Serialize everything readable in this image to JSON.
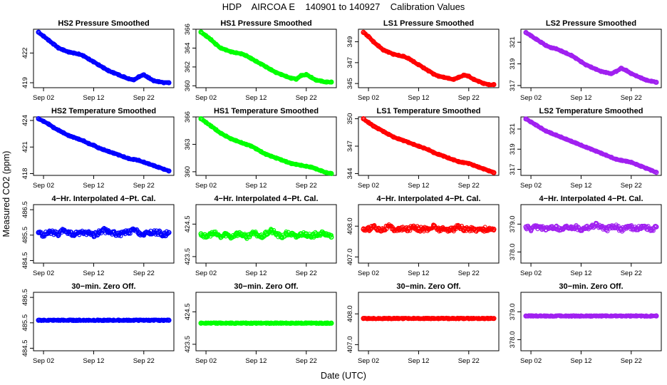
{
  "figure": {
    "title": "HDP    AIRCOA E    140901 to 140927    Calibration Values",
    "xlabel": "Date (UTC)",
    "ylabel": "Measured CO2 (ppm)"
  },
  "colors": {
    "HS2": "#0000ff",
    "HS1": "#00ff00",
    "LS1": "#ff0000",
    "LS2": "#a020f0"
  },
  "x_ticks": [
    "Sep 02",
    "Sep 12",
    "Sep 22"
  ],
  "chart_data": [
    {
      "type": "scatter",
      "row": 0,
      "col": 0,
      "title": "HS2 Pressure Smoothed",
      "color_key": "HS2",
      "ylim": [
        418.5,
        424.4
      ],
      "yticks": [
        "419",
        "422"
      ],
      "ytick_values": [
        419,
        422
      ],
      "x": [
        1,
        2,
        3,
        4,
        5,
        6,
        7,
        8,
        9,
        10,
        11,
        12,
        13,
        14,
        15,
        16,
        17,
        18,
        19,
        20,
        21,
        22,
        23,
        24,
        25,
        26,
        27
      ],
      "y": [
        424.1,
        423.7,
        423.3,
        422.9,
        422.5,
        422.3,
        422.1,
        422.0,
        421.9,
        421.7,
        421.4,
        421.1,
        420.8,
        420.5,
        420.2,
        420.0,
        419.8,
        419.6,
        419.4,
        419.3,
        419.6,
        419.8,
        419.5,
        419.2,
        419.1,
        419.0,
        419.0
      ],
      "xlabel": "",
      "ylabel": ""
    },
    {
      "type": "scatter",
      "row": 0,
      "col": 1,
      "title": "HS1 Pressure Smoothed",
      "color_key": "HS1",
      "ylim": [
        359.8,
        366.0
      ],
      "yticks": [
        "360",
        "362",
        "364",
        "366"
      ],
      "ytick_values": [
        360,
        362,
        364,
        366
      ],
      "x": [
        1,
        2,
        3,
        4,
        5,
        6,
        7,
        8,
        9,
        10,
        11,
        12,
        13,
        14,
        15,
        16,
        17,
        18,
        19,
        20,
        21,
        22,
        23,
        24,
        25,
        26,
        27
      ],
      "y": [
        365.7,
        365.3,
        364.9,
        364.4,
        364.0,
        363.8,
        363.6,
        363.5,
        363.4,
        363.2,
        362.9,
        362.6,
        362.3,
        362.0,
        361.7,
        361.4,
        361.2,
        361.0,
        360.8,
        360.7,
        361.1,
        361.2,
        360.9,
        360.6,
        360.5,
        360.4,
        360.4
      ],
      "xlabel": "",
      "ylabel": ""
    },
    {
      "type": "scatter",
      "row": 0,
      "col": 2,
      "title": "LS1 Pressure Smoothed",
      "color_key": "LS1",
      "ylim": [
        344.6,
        350.2
      ],
      "yticks": [
        "345",
        "347",
        "349"
      ],
      "ytick_values": [
        345,
        347,
        349
      ],
      "x": [
        1,
        2,
        3,
        4,
        5,
        6,
        7,
        8,
        9,
        10,
        11,
        12,
        13,
        14,
        15,
        16,
        17,
        18,
        19,
        20,
        21,
        22,
        23,
        24,
        25,
        26,
        27
      ],
      "y": [
        349.9,
        349.5,
        349.0,
        348.6,
        348.2,
        348.0,
        347.8,
        347.7,
        347.6,
        347.4,
        347.1,
        346.8,
        346.5,
        346.2,
        345.9,
        345.7,
        345.6,
        345.5,
        345.4,
        345.6,
        345.8,
        345.7,
        345.4,
        345.2,
        345.0,
        344.9,
        344.9
      ],
      "xlabel": "",
      "ylabel": ""
    },
    {
      "type": "scatter",
      "row": 0,
      "col": 3,
      "title": "LS2 Pressure Smoothed",
      "color_key": "LS2",
      "ylim": [
        316.8,
        322.2
      ],
      "yticks": [
        "317",
        "319",
        "321"
      ],
      "ytick_values": [
        317,
        319,
        321
      ],
      "x": [
        1,
        2,
        3,
        4,
        5,
        6,
        7,
        8,
        9,
        10,
        11,
        12,
        13,
        14,
        15,
        16,
        17,
        18,
        19,
        20,
        21,
        22,
        23,
        24,
        25,
        26,
        27
      ],
      "y": [
        321.9,
        321.6,
        321.3,
        321.0,
        320.7,
        320.5,
        320.4,
        320.2,
        320.0,
        319.8,
        319.5,
        319.2,
        318.9,
        318.7,
        318.5,
        318.3,
        318.2,
        318.1,
        318.3,
        318.6,
        318.4,
        318.1,
        317.9,
        317.7,
        317.5,
        317.4,
        317.3
      ],
      "xlabel": "",
      "ylabel": ""
    },
    {
      "type": "scatter",
      "row": 1,
      "col": 0,
      "title": "HS2 Temperature Smoothed",
      "color_key": "HS2",
      "ylim": [
        417.8,
        424.4
      ],
      "yticks": [
        "418",
        "421",
        "424"
      ],
      "ytick_values": [
        418,
        421,
        424
      ],
      "x": [
        1,
        2,
        3,
        4,
        5,
        6,
        7,
        8,
        9,
        10,
        11,
        12,
        13,
        14,
        15,
        16,
        17,
        18,
        19,
        20,
        21,
        22,
        23,
        24,
        25,
        26,
        27
      ],
      "y": [
        424.2,
        423.9,
        423.6,
        423.2,
        422.9,
        422.6,
        422.3,
        422.1,
        421.9,
        421.7,
        421.4,
        421.2,
        420.9,
        420.7,
        420.5,
        420.3,
        420.1,
        419.9,
        419.7,
        419.6,
        419.5,
        419.3,
        419.1,
        418.9,
        418.7,
        418.5,
        418.3
      ],
      "xlabel": "",
      "ylabel": ""
    },
    {
      "type": "scatter",
      "row": 1,
      "col": 1,
      "title": "HS1 Temperature Smoothed",
      "color_key": "HS1",
      "ylim": [
        359.6,
        366.0
      ],
      "yticks": [
        "360",
        "363",
        "366"
      ],
      "ytick_values": [
        360,
        363,
        366
      ],
      "x": [
        1,
        2,
        3,
        4,
        5,
        6,
        7,
        8,
        9,
        10,
        11,
        12,
        13,
        14,
        15,
        16,
        17,
        18,
        19,
        20,
        21,
        22,
        23,
        24,
        25,
        26,
        27
      ],
      "y": [
        365.8,
        365.4,
        365.0,
        364.6,
        364.2,
        363.9,
        363.6,
        363.4,
        363.2,
        363.0,
        362.8,
        362.5,
        362.2,
        361.9,
        361.7,
        361.5,
        361.3,
        361.1,
        360.9,
        360.8,
        360.7,
        360.6,
        360.5,
        360.3,
        360.1,
        359.9,
        359.8
      ],
      "xlabel": "",
      "ylabel": ""
    },
    {
      "type": "scatter",
      "row": 1,
      "col": 2,
      "title": "LS1 Temperature Smoothed",
      "color_key": "LS1",
      "ylim": [
        343.8,
        350.2
      ],
      "yticks": [
        "344",
        "347",
        "350"
      ],
      "ytick_values": [
        344,
        347,
        350
      ],
      "x": [
        1,
        2,
        3,
        4,
        5,
        6,
        7,
        8,
        9,
        10,
        11,
        12,
        13,
        14,
        15,
        16,
        17,
        18,
        19,
        20,
        21,
        22,
        23,
        24,
        25,
        26,
        27
      ],
      "y": [
        350.0,
        349.6,
        349.2,
        348.9,
        348.6,
        348.3,
        348.0,
        347.8,
        347.6,
        347.4,
        347.2,
        347.0,
        346.8,
        346.6,
        346.3,
        346.1,
        345.9,
        345.7,
        345.5,
        345.3,
        345.2,
        345.1,
        344.9,
        344.7,
        344.5,
        344.3,
        344.1
      ],
      "xlabel": "",
      "ylabel": ""
    },
    {
      "type": "scatter",
      "row": 1,
      "col": 3,
      "title": "LS2 Temperature Smoothed",
      "color_key": "LS2",
      "ylim": [
        316.4,
        322.2
      ],
      "yticks": [
        "317",
        "319",
        "321"
      ],
      "ytick_values": [
        317,
        319,
        321
      ],
      "x": [
        1,
        2,
        3,
        4,
        5,
        6,
        7,
        8,
        9,
        10,
        11,
        12,
        13,
        14,
        15,
        16,
        17,
        18,
        19,
        20,
        21,
        22,
        23,
        24,
        25,
        26,
        27
      ],
      "y": [
        322.0,
        321.7,
        321.4,
        321.1,
        320.8,
        320.6,
        320.4,
        320.2,
        320.0,
        319.8,
        319.6,
        319.4,
        319.2,
        319.0,
        318.8,
        318.6,
        318.4,
        318.2,
        318.0,
        317.9,
        317.8,
        317.7,
        317.5,
        317.3,
        317.1,
        316.9,
        316.7
      ],
      "xlabel": "",
      "ylabel": ""
    },
    {
      "type": "scatter",
      "row": 2,
      "col": 0,
      "title": "4−Hr. Interpolated 4−Pt. Cal.",
      "color_key": "HS2",
      "ylim": [
        484.4,
        486.7
      ],
      "yticks": [
        "484.5",
        "485.5",
        "486.5"
      ],
      "ytick_values": [
        484.5,
        485.5,
        486.5
      ],
      "x": [
        1,
        2,
        3,
        4,
        5,
        6,
        7,
        8,
        9,
        10,
        11,
        12,
        13,
        14,
        15,
        16,
        17,
        18,
        19,
        20,
        21,
        22,
        23,
        24,
        25,
        26,
        27
      ],
      "y": [
        485.6,
        485.5,
        485.6,
        485.6,
        485.5,
        485.7,
        485.6,
        485.5,
        485.6,
        485.6,
        485.6,
        485.5,
        485.6,
        485.7,
        485.6,
        485.6,
        485.5,
        485.6,
        485.6,
        485.7,
        485.6,
        485.5,
        485.6,
        485.6,
        485.6,
        485.5,
        485.6
      ],
      "xlabel": "",
      "ylabel": ""
    },
    {
      "type": "scatter",
      "row": 2,
      "col": 1,
      "title": "4−Hr. Interpolated 4−Pt. Cal.",
      "color_key": "HS1",
      "ylim": [
        423.3,
        425.1
      ],
      "yticks": [
        "423.5",
        "424.5"
      ],
      "ytick_values": [
        423.5,
        424.5
      ],
      "x": [
        1,
        2,
        3,
        4,
        5,
        6,
        7,
        8,
        9,
        10,
        11,
        12,
        13,
        14,
        15,
        16,
        17,
        18,
        19,
        20,
        21,
        22,
        23,
        24,
        25,
        26,
        27
      ],
      "y": [
        424.2,
        424.1,
        424.2,
        424.2,
        424.1,
        424.2,
        424.1,
        424.2,
        424.2,
        424.1,
        424.2,
        424.2,
        424.1,
        424.2,
        424.3,
        424.2,
        424.1,
        424.2,
        424.2,
        424.1,
        424.2,
        424.2,
        424.1,
        424.2,
        424.2,
        424.2,
        424.1
      ],
      "xlabel": "",
      "ylabel": ""
    },
    {
      "type": "scatter",
      "row": 2,
      "col": 2,
      "title": "4−Hr. Interpolated 4−Pt. Cal.",
      "color_key": "LS1",
      "ylim": [
        406.8,
        408.7
      ],
      "yticks": [
        "407.0",
        "408.0"
      ],
      "ytick_values": [
        407.0,
        408.0
      ],
      "x": [
        1,
        2,
        3,
        4,
        5,
        6,
        7,
        8,
        9,
        10,
        11,
        12,
        13,
        14,
        15,
        16,
        17,
        18,
        19,
        20,
        21,
        22,
        23,
        24,
        25,
        26,
        27
      ],
      "y": [
        407.9,
        407.9,
        408.0,
        407.9,
        407.9,
        408.0,
        407.9,
        407.9,
        407.9,
        407.9,
        408.0,
        407.9,
        407.9,
        407.9,
        408.0,
        407.9,
        407.9,
        407.9,
        407.9,
        408.0,
        407.9,
        407.9,
        407.9,
        407.9,
        407.9,
        407.9,
        407.9
      ],
      "xlabel": "",
      "ylabel": ""
    },
    {
      "type": "scatter",
      "row": 2,
      "col": 3,
      "title": "4−Hr. Interpolated 4−Pt. Cal.",
      "color_key": "LS2",
      "ylim": [
        377.6,
        379.7
      ],
      "yticks": [
        "378.0",
        "379.0"
      ],
      "ytick_values": [
        378.0,
        379.0
      ],
      "x": [
        1,
        2,
        3,
        4,
        5,
        6,
        7,
        8,
        9,
        10,
        11,
        12,
        13,
        14,
        15,
        16,
        17,
        18,
        19,
        20,
        21,
        22,
        23,
        24,
        25,
        26,
        27
      ],
      "y": [
        378.9,
        378.8,
        378.9,
        378.9,
        378.8,
        378.9,
        378.9,
        378.8,
        378.9,
        378.9,
        378.9,
        378.8,
        378.9,
        378.9,
        379.0,
        378.9,
        378.8,
        378.9,
        378.9,
        378.8,
        378.9,
        378.9,
        378.8,
        378.9,
        378.9,
        378.8,
        378.9
      ],
      "xlabel": "",
      "ylabel": ""
    },
    {
      "type": "scatter",
      "row": 3,
      "col": 0,
      "title": "30−min. Zero Off.",
      "color_key": "HS2",
      "ylim": [
        484.4,
        486.7
      ],
      "yticks": [
        "484.5",
        "485.5",
        "486.5"
      ],
      "ytick_values": [
        484.5,
        485.5,
        486.5
      ],
      "x": [
        1,
        2,
        3,
        4,
        5,
        6,
        7,
        8,
        9,
        10,
        11,
        12,
        13,
        14,
        15,
        16,
        17,
        18,
        19,
        20,
        21,
        22,
        23,
        24,
        25,
        26,
        27
      ],
      "y": [
        485.6,
        485.6,
        485.6,
        485.6,
        485.6,
        485.6,
        485.6,
        485.6,
        485.6,
        485.6,
        485.6,
        485.6,
        485.6,
        485.6,
        485.6,
        485.6,
        485.6,
        485.6,
        485.6,
        485.6,
        485.6,
        485.6,
        485.6,
        485.6,
        485.6,
        485.6,
        485.6
      ],
      "xlabel": "",
      "ylabel": ""
    },
    {
      "type": "scatter",
      "row": 3,
      "col": 1,
      "title": "30−min. Zero Off.",
      "color_key": "HS1",
      "ylim": [
        423.3,
        425.1
      ],
      "yticks": [
        "423.5",
        "424.5"
      ],
      "ytick_values": [
        423.5,
        424.5
      ],
      "x": [
        1,
        2,
        3,
        4,
        5,
        6,
        7,
        8,
        9,
        10,
        11,
        12,
        13,
        14,
        15,
        16,
        17,
        18,
        19,
        20,
        21,
        22,
        23,
        24,
        25,
        26,
        27
      ],
      "y": [
        424.15,
        424.15,
        424.15,
        424.15,
        424.15,
        424.15,
        424.15,
        424.15,
        424.15,
        424.15,
        424.15,
        424.15,
        424.15,
        424.15,
        424.15,
        424.15,
        424.15,
        424.15,
        424.15,
        424.15,
        424.15,
        424.15,
        424.15,
        424.15,
        424.15,
        424.15,
        424.15
      ],
      "xlabel": "",
      "ylabel": ""
    },
    {
      "type": "scatter",
      "row": 3,
      "col": 2,
      "title": "30−min. Zero Off.",
      "color_key": "LS1",
      "ylim": [
        406.8,
        408.7
      ],
      "yticks": [
        "407.0",
        "408.0"
      ],
      "ytick_values": [
        407.0,
        408.0
      ],
      "x": [
        1,
        2,
        3,
        4,
        5,
        6,
        7,
        8,
        9,
        10,
        11,
        12,
        13,
        14,
        15,
        16,
        17,
        18,
        19,
        20,
        21,
        22,
        23,
        24,
        25,
        26,
        27
      ],
      "y": [
        407.85,
        407.85,
        407.85,
        407.85,
        407.85,
        407.85,
        407.85,
        407.85,
        407.85,
        407.85,
        407.85,
        407.85,
        407.85,
        407.85,
        407.85,
        407.85,
        407.85,
        407.85,
        407.85,
        407.85,
        407.85,
        407.85,
        407.85,
        407.85,
        407.85,
        407.85,
        407.85
      ],
      "xlabel": "",
      "ylabel": ""
    },
    {
      "type": "scatter",
      "row": 3,
      "col": 3,
      "title": "30−min. Zero Off.",
      "color_key": "LS2",
      "ylim": [
        377.6,
        379.7
      ],
      "yticks": [
        "378.0",
        "379.0"
      ],
      "ytick_values": [
        378.0,
        379.0
      ],
      "x": [
        1,
        2,
        3,
        4,
        5,
        6,
        7,
        8,
        9,
        10,
        11,
        12,
        13,
        14,
        15,
        16,
        17,
        18,
        19,
        20,
        21,
        22,
        23,
        24,
        25,
        26,
        27
      ],
      "y": [
        378.85,
        378.85,
        378.85,
        378.85,
        378.85,
        378.85,
        378.85,
        378.85,
        378.85,
        378.85,
        378.85,
        378.85,
        378.85,
        378.85,
        378.85,
        378.85,
        378.85,
        378.85,
        378.85,
        378.85,
        378.85,
        378.85,
        378.85,
        378.85,
        378.85,
        378.85,
        378.85
      ],
      "xlabel": "",
      "ylabel": ""
    }
  ]
}
